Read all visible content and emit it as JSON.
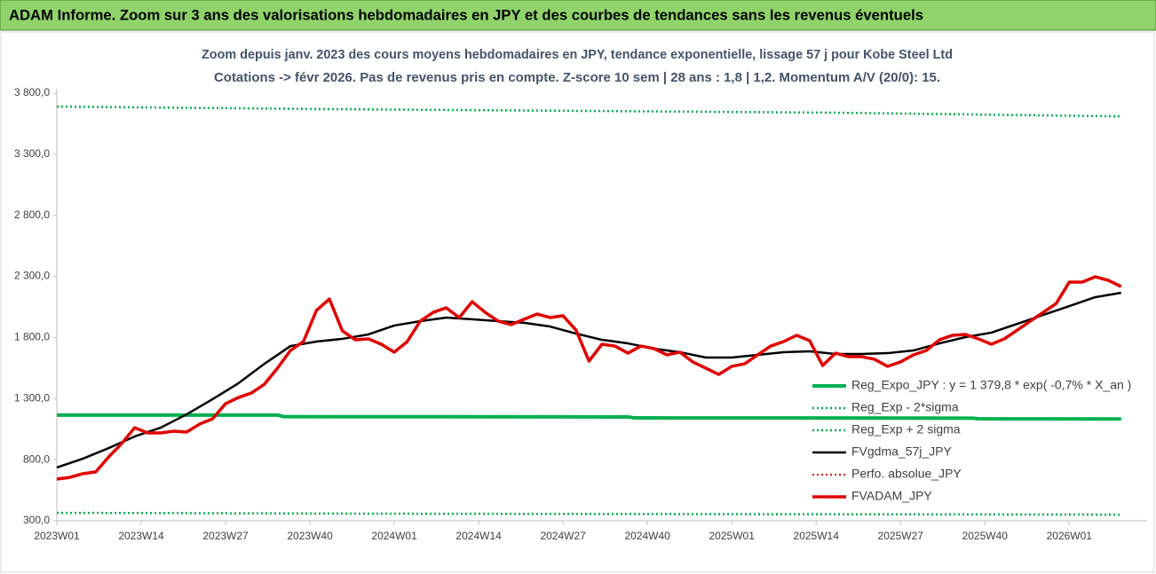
{
  "chart_data": {
    "type": "line",
    "header": "ADAM Informe. Zoom sur 3 ans des valorisations hebdomadaires en JPY et des courbes de tendances sans les revenus éventuels",
    "title": "Zoom depuis janv. 2023 des cours moyens hebdomadaires en JPY, tendance exponentielle, lissage 57 j pour Kobe Steel Ltd",
    "subtitle": "Cotations -> févr 2026. Pas de revenus pris en compte. Z-score 10 sem | 28 ans : 1,8 | 1,2. Momentum A/V (20/0): 15.",
    "xlim": [
      0,
      168
    ],
    "xticks": [
      {
        "value": 0,
        "label": "2023W01"
      },
      {
        "value": 13,
        "label": "2023W14"
      },
      {
        "value": 26,
        "label": "2023W27"
      },
      {
        "value": 39,
        "label": "2023W40"
      },
      {
        "value": 52,
        "label": "2024W01"
      },
      {
        "value": 65,
        "label": "2024W14"
      },
      {
        "value": 78,
        "label": "2024W27"
      },
      {
        "value": 91,
        "label": "2024W40"
      },
      {
        "value": 104,
        "label": "2025W01"
      },
      {
        "value": 117,
        "label": "2025W14"
      },
      {
        "value": 130,
        "label": "2025W27"
      },
      {
        "value": 143,
        "label": "2025W40"
      },
      {
        "value": 156,
        "label": "2026W01"
      }
    ],
    "ylim": [
      300,
      3800
    ],
    "yticks": [
      {
        "value": 300,
        "label": "300,0"
      },
      {
        "value": 800,
        "label": "800,0"
      },
      {
        "value": 1300,
        "label": "1 300,0"
      },
      {
        "value": 1800,
        "label": "1 800,0"
      },
      {
        "value": 2300,
        "label": "2 300,0"
      },
      {
        "value": 2800,
        "label": "2 800,0"
      },
      {
        "value": 3300,
        "label": "3 300,0"
      },
      {
        "value": 3800,
        "label": "3 800,0"
      }
    ],
    "grid": false,
    "legend": "lower right",
    "series": [
      {
        "name": "Reg_Expo_JPY : y = 1 379,8 * exp( -0,7% *  X_an )",
        "color": "#00b050",
        "style": "solid",
        "width": 4,
        "x": [
          0,
          34,
          35,
          88,
          89,
          141,
          142,
          164
        ],
        "values": [
          1165,
          1165,
          1152,
          1150,
          1142,
          1140,
          1135,
          1133
        ]
      },
      {
        "name": "Reg_Exp - 2*sigma",
        "color": "#00b050",
        "style": "dotted",
        "width": 2.5,
        "x": [
          0,
          50,
          164
        ],
        "values": [
          365,
          358,
          350
        ]
      },
      {
        "name": "Reg_Exp + 2 sigma",
        "color": "#00b050",
        "style": "dotted",
        "width": 2.5,
        "x": [
          0,
          40,
          80,
          120,
          164
        ],
        "values": [
          3690,
          3670,
          3655,
          3640,
          3610
        ]
      },
      {
        "name": "FVgdma_57j_JPY",
        "color": "#000000",
        "style": "solid",
        "width": 2.5,
        "x": [
          0,
          4,
          8,
          12,
          16,
          20,
          24,
          28,
          32,
          36,
          40,
          44,
          48,
          52,
          56,
          60,
          64,
          68,
          72,
          76,
          80,
          84,
          88,
          92,
          96,
          100,
          104,
          108,
          112,
          116,
          120,
          124,
          128,
          132,
          136,
          140,
          144,
          148,
          152,
          156,
          160,
          164
        ],
        "values": [
          736,
          808,
          895,
          990,
          1062,
          1171,
          1295,
          1426,
          1585,
          1730,
          1767,
          1789,
          1825,
          1898,
          1934,
          1963,
          1949,
          1934,
          1920,
          1890,
          1832,
          1781,
          1752,
          1709,
          1680,
          1636,
          1636,
          1658,
          1680,
          1687,
          1665,
          1665,
          1672,
          1694,
          1752,
          1803,
          1840,
          1912,
          1985,
          2057,
          2130,
          2166
        ]
      },
      {
        "name": "Perfo. absolue_JPY",
        "color": "#e00000",
        "style": "dotted",
        "width": 2,
        "x": [],
        "values": []
      },
      {
        "name": "FVADAM_JPY",
        "color": "#e00000",
        "style": "solid",
        "width": 3.5,
        "x": [
          0,
          2,
          4,
          6,
          8,
          10,
          12,
          14,
          16,
          18,
          20,
          22,
          24,
          26,
          28,
          30,
          32,
          34,
          36,
          38,
          40,
          42,
          44,
          46,
          48,
          50,
          52,
          54,
          56,
          58,
          60,
          62,
          64,
          66,
          68,
          70,
          72,
          74,
          76,
          78,
          80,
          82,
          84,
          86,
          88,
          90,
          92,
          94,
          96,
          98,
          100,
          102,
          104,
          106,
          108,
          110,
          112,
          114,
          116,
          118,
          120,
          122,
          124,
          126,
          128,
          130,
          132,
          134,
          136,
          138,
          140,
          142,
          144,
          146,
          148,
          150,
          152,
          154,
          156,
          158,
          160,
          162,
          164
        ],
        "values": [
          641,
          655,
          685,
          700,
          823,
          932,
          1062,
          1019,
          1019,
          1033,
          1026,
          1091,
          1135,
          1258,
          1309,
          1346,
          1418,
          1549,
          1694,
          1767,
          2021,
          2115,
          1854,
          1781,
          1789,
          1745,
          1680,
          1767,
          1934,
          2006,
          2043,
          1963,
          2093,
          2006,
          1934,
          1905,
          1949,
          1992,
          1963,
          1978,
          1861,
          1607,
          1745,
          1730,
          1672,
          1730,
          1709,
          1658,
          1680,
          1600,
          1549,
          1498,
          1564,
          1585,
          1658,
          1730,
          1767,
          1818,
          1774,
          1571,
          1672,
          1643,
          1643,
          1622,
          1564,
          1600,
          1658,
          1694,
          1781,
          1818,
          1825,
          1789,
          1745,
          1789,
          1861,
          1934,
          2006,
          2079,
          2253,
          2253,
          2297,
          2268,
          2217
        ]
      }
    ]
  }
}
